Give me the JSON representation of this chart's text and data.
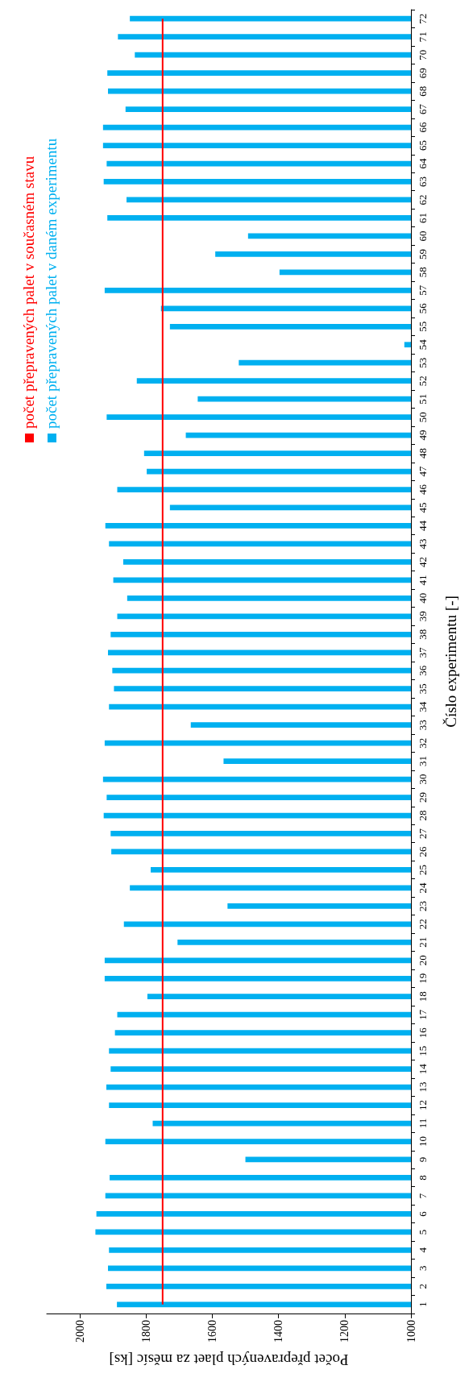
{
  "chart_data": {
    "type": "bar",
    "orientation": "horizontal",
    "xlabel": "Počet přepravených plaet za měsíc [ks]",
    "ylabel": "Číslo experimentu [-]",
    "categories": [
      "72",
      "71",
      "70",
      "69",
      "68",
      "67",
      "66",
      "65",
      "64",
      "63",
      "62",
      "61",
      "60",
      "59",
      "58",
      "57",
      "56",
      "55",
      "54",
      "53",
      "52",
      "51",
      "50",
      "49",
      "48",
      "47",
      "46",
      "45",
      "44",
      "43",
      "42",
      "41",
      "40",
      "39",
      "38",
      "37",
      "36",
      "35",
      "34",
      "33",
      "32",
      "31",
      "30",
      "29",
      "28",
      "27",
      "26",
      "25",
      "24",
      "23",
      "22",
      "21",
      "20",
      "19",
      "18",
      "17",
      "16",
      "15",
      "14",
      "13",
      "12",
      "11",
      "10",
      "9",
      "8",
      "7",
      "6",
      "5",
      "4",
      "3",
      "2",
      "1"
    ],
    "series": [
      {
        "name": "počet přepravených palet v současném stavu",
        "type": "line",
        "color": "#ff0000",
        "values": [
          1750,
          1750,
          1750,
          1750,
          1750,
          1750,
          1750,
          1750,
          1750,
          1750,
          1750,
          1750,
          1750,
          1750,
          1750,
          1750,
          1750,
          1750,
          1750,
          1750,
          1750,
          1750,
          1750,
          1750,
          1750,
          1750,
          1750,
          1750,
          1750,
          1750,
          1750,
          1750,
          1750,
          1750,
          1750,
          1750,
          1750,
          1750,
          1750,
          1750,
          1750,
          1750,
          1750,
          1750,
          1750,
          1750,
          1750,
          1750,
          1750,
          1750,
          1750,
          1750,
          1750,
          1750,
          1750,
          1750,
          1750,
          1750,
          1750,
          1750,
          1750,
          1750,
          1750,
          1750,
          1750,
          1750,
          1750,
          1750,
          1750,
          1750,
          1750,
          1750
        ]
      },
      {
        "name": "počet přepravených palet v daném experimentu",
        "color": "#00b0f0",
        "values": [
          1849,
          1885,
          1834,
          1917,
          1915,
          1862,
          1930,
          1930,
          1919,
          1928,
          1859,
          1917,
          1492,
          1591,
          1397,
          1925,
          1755,
          1728,
          1020,
          1520,
          1828,
          1644,
          1919,
          1680,
          1806,
          1798,
          1887,
          1728,
          1923,
          1912,
          1869,
          1899,
          1857,
          1887,
          1907,
          1915,
          1902,
          1897,
          1912,
          1665,
          1925,
          1566,
          1930,
          1919,
          1928,
          1907,
          1905,
          1786,
          1849,
          1554,
          1867,
          1705,
          1925,
          1925,
          1796,
          1887,
          1894,
          1912,
          1907,
          1920,
          1912,
          1780,
          1923,
          1500,
          1910,
          1923,
          1950,
          1953,
          1912,
          1915,
          1920,
          1888
        ]
      }
    ],
    "xlim": [
      2100,
      1000
    ],
    "xticks": [
      2000,
      1800,
      1600,
      1400,
      1200,
      1000
    ],
    "grid": false,
    "legend": "top left",
    "marker": "none"
  }
}
